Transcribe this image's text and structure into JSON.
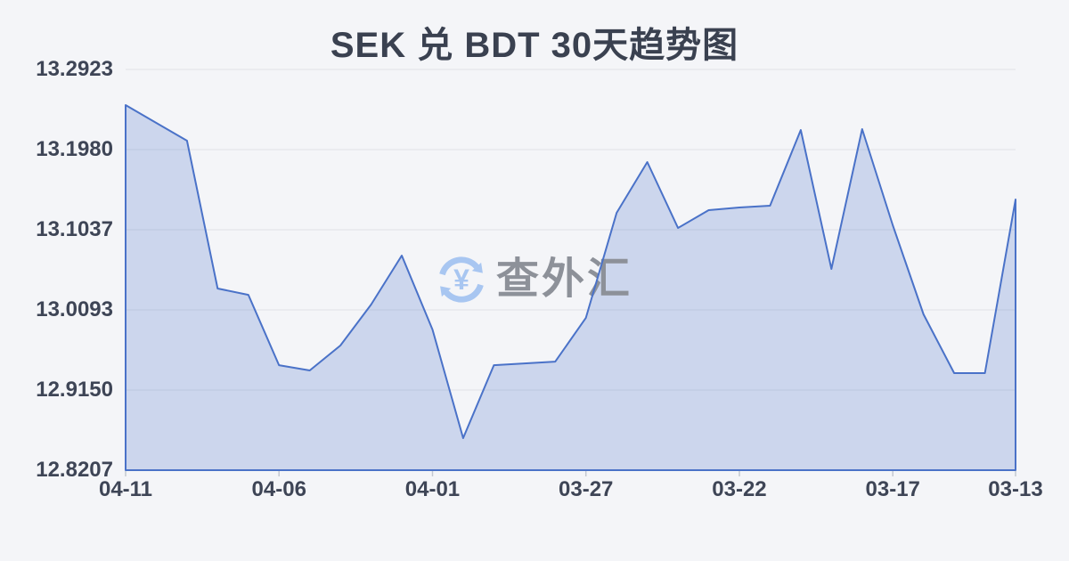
{
  "header": {
    "title": "SEK 兑 BDT 30天趋势图"
  },
  "watermark": {
    "icon": "currency-refresh-icon",
    "symbol": "¥",
    "text": "查外汇",
    "icon_color": "#a8c6f1",
    "text_color": "#8d9199"
  },
  "style": {
    "background": "#f4f5f8",
    "title_color": "#3a4150",
    "axis_label_color": "#3e4556"
  },
  "chart_data": {
    "type": "area",
    "title": "SEK 兑 BDT 30天趋势图",
    "x": [
      "04-11",
      "04-10",
      "04-09",
      "04-08",
      "04-07",
      "04-06",
      "04-05",
      "04-04",
      "04-03",
      "04-02",
      "04-01",
      "03-31",
      "03-30",
      "03-29",
      "03-28",
      "03-27",
      "03-26",
      "03-25",
      "03-24",
      "03-23",
      "03-22",
      "03-21",
      "03-20",
      "03-19",
      "03-18",
      "03-17",
      "03-16",
      "03-15",
      "03-14",
      "03-13"
    ],
    "values": [
      13.2504,
      13.2294,
      13.2085,
      13.0345,
      13.0271,
      12.9443,
      12.9381,
      12.9674,
      13.0156,
      13.0733,
      12.9862,
      12.8584,
      12.9443,
      12.9464,
      12.9485,
      13.0,
      13.1236,
      13.1833,
      13.1058,
      13.1267,
      13.1299,
      13.132,
      13.221,
      13.0575,
      13.2221,
      13.1089,
      13.0041,
      12.9349,
      12.9349,
      13.1393
    ],
    "x_tick_indices": [
      0,
      5,
      10,
      15,
      20,
      25,
      29
    ],
    "x_tick_labels": [
      "04-11",
      "04-06",
      "04-01",
      "03-27",
      "03-22",
      "03-17",
      "03-13"
    ],
    "y_tick_labels": [
      "13.2923",
      "13.1980",
      "13.1037",
      "13.0093",
      "12.9150",
      "12.8207"
    ],
    "ylim": [
      12.8207,
      13.2923
    ],
    "grid": true,
    "legend": false,
    "line_color": "#4a72c8",
    "fill_color": "rgba(85,125,205,0.25)",
    "grid_color": "#e6e8ec",
    "tick_color": "#c3c8d1"
  }
}
